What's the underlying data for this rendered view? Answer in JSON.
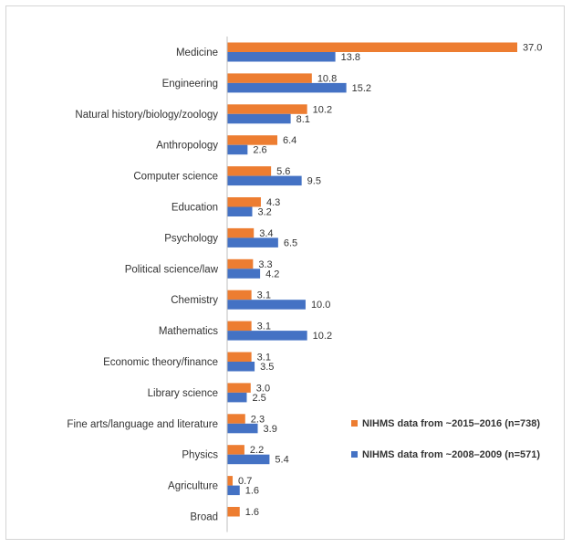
{
  "chart_data": {
    "type": "bar",
    "orientation": "horizontal",
    "categories": [
      "Medicine",
      "Engineering",
      "Natural history/biology/zoology",
      "Anthropology",
      "Computer science",
      "Education",
      "Psychology",
      "Political science/law",
      "Chemistry",
      "Mathematics",
      "Economic theory/finance",
      "Library science",
      "Fine arts/language and literature",
      "Physics",
      "Agriculture",
      "Broad"
    ],
    "series": [
      {
        "name": "NIHMS data from ~2015–2016 (n=738)",
        "color": "#ED7D31",
        "values": [
          37.0,
          10.8,
          10.2,
          6.4,
          5.6,
          4.3,
          3.4,
          3.3,
          3.1,
          3.1,
          3.1,
          3.0,
          2.3,
          2.2,
          0.7,
          1.6
        ],
        "labels": [
          "37.0",
          "10.8",
          "10.2",
          "6.4",
          "5.6",
          "4.3",
          "3.4",
          "3.3",
          "3.1",
          "3.1",
          "3.1",
          "3.0",
          "2.3",
          "2.2",
          "0.7",
          "1.6"
        ]
      },
      {
        "name": "NIHMS data from ~2008–2009 (n=571)",
        "color": "#4472C4",
        "values": [
          13.8,
          15.2,
          8.1,
          2.6,
          9.5,
          3.2,
          6.5,
          4.2,
          10.0,
          10.2,
          3.5,
          2.5,
          3.9,
          5.4,
          1.6,
          null
        ],
        "labels": [
          "13.8",
          "15.2",
          "8.1",
          "2.6",
          "9.5",
          "3.2",
          "6.5",
          "4.2",
          "10.0",
          "10.2",
          "3.5",
          "2.5",
          "3.9",
          "5.4",
          "1.6",
          null
        ]
      }
    ],
    "xlim": [
      0,
      37.0
    ],
    "grid": false,
    "legend_position": "right"
  }
}
